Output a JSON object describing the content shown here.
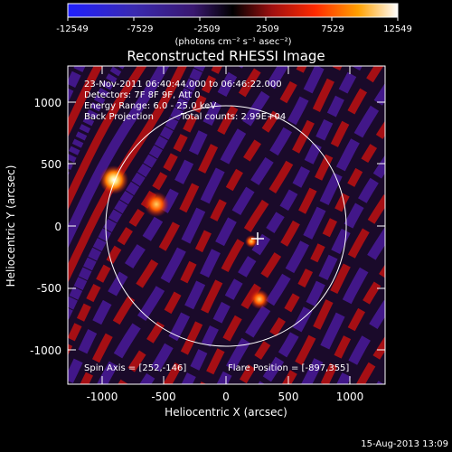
{
  "chart_data": {
    "type": "heatmap",
    "title": "Reconstructed RHESSI Image",
    "xlabel": "Heliocentric X (arcsec)",
    "ylabel": "Heliocentric Y (arcsec)",
    "xlim": [
      -1280,
      1280
    ],
    "ylim": [
      -1280,
      1280
    ],
    "xticks": [
      -1000,
      -500,
      0,
      500,
      1000
    ],
    "yticks": [
      -1000,
      -500,
      0,
      500,
      1000
    ],
    "colorbar": {
      "label": "(photons cm⁻² s⁻¹ asec⁻²)",
      "min": -12549,
      "max": 12549,
      "ticks": [
        "-12549",
        "-7529",
        "-2509",
        "2509",
        "7529",
        "12549"
      ]
    },
    "sources": [
      {
        "x": -897,
        "y": 355,
        "intensity": 12549
      },
      {
        "x": -560,
        "y": 170,
        "intensity": 8500
      },
      {
        "x": 252,
        "y": -146,
        "intensity": 3000
      },
      {
        "x": 270,
        "y": -580,
        "intensity": 5000
      }
    ],
    "solar_limb_radius_arcsec": 975,
    "crosshair": {
      "x": 252,
      "y": -146
    },
    "annotations": {
      "time_range": "23-Nov-2011 06:40:44.000 to 06:46:22.000",
      "detectors": "Detectors: 7F 8F 9F, Att 0",
      "energy_range": "Energy Range: 6.0 - 25.0 keV",
      "method": "Back Projection",
      "total_counts": "Total counts: 2.99E+04",
      "spin_axis": "Spin Axis = [252,-146]",
      "flare_position": "Flare Position = [-897,355]"
    },
    "footer_date": "15-Aug-2013 13:09"
  },
  "colors": {
    "background": "#000000",
    "negative": "#4a1a9a",
    "positive": "#c01010",
    "peak": "#ffffc0",
    "limb": "#ffffff"
  }
}
